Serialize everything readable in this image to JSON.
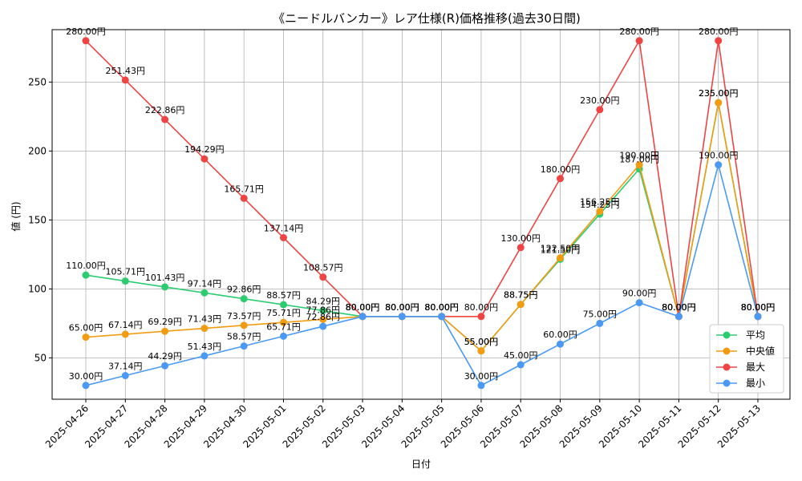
{
  "chart_data": {
    "type": "line",
    "title": "《ニードルバンカー》レア仕様(R)価格推移(過去30日間)",
    "xlabel": "日付",
    "ylabel": "値 (円)",
    "categories": [
      "2025-04-26",
      "2025-04-27",
      "2025-04-28",
      "2025-04-29",
      "2025-04-30",
      "2025-05-01",
      "2025-05-02",
      "2025-05-03",
      "2025-05-04",
      "2025-05-05",
      "2025-05-06",
      "2025-05-07",
      "2025-05-08",
      "2025-05-09",
      "2025-05-10",
      "2025-05-11",
      "2025-05-12",
      "2025-05-13"
    ],
    "ylim": [
      20,
      288
    ],
    "yticks": [
      50,
      100,
      150,
      200,
      250
    ],
    "grid": true,
    "legend_position": "lower-right",
    "label_suffix": "円",
    "series": [
      {
        "name": "平均",
        "color": "#2ecc71",
        "values": [
          110.0,
          105.71,
          101.43,
          97.14,
          92.86,
          88.57,
          84.29,
          80.0,
          80.0,
          80.0,
          55.0,
          88.75,
          121.5,
          154.25,
          187.0,
          80.0,
          235.0,
          80.0
        ]
      },
      {
        "name": "中央値",
        "color": "#f39c12",
        "values": [
          65.0,
          67.14,
          69.29,
          71.43,
          73.57,
          75.71,
          77.86,
          80.0,
          80.0,
          80.0,
          55.0,
          88.75,
          122.5,
          156.25,
          190.0,
          80.0,
          235.0,
          80.0
        ]
      },
      {
        "name": "最大",
        "color": "#ef4444",
        "values": [
          280.0,
          251.43,
          222.86,
          194.29,
          165.71,
          137.14,
          108.57,
          80.0,
          80.0,
          80.0,
          80.0,
          130.0,
          180.0,
          230.0,
          280.0,
          80.0,
          280.0,
          80.0
        ]
      },
      {
        "name": "最小",
        "color": "#4a9af5",
        "values": [
          30.0,
          37.14,
          44.29,
          51.43,
          58.57,
          65.71,
          72.86,
          80.0,
          80.0,
          80.0,
          30.0,
          45.0,
          60.0,
          75.0,
          90.0,
          80.0,
          190.0,
          80.0
        ]
      }
    ]
  }
}
